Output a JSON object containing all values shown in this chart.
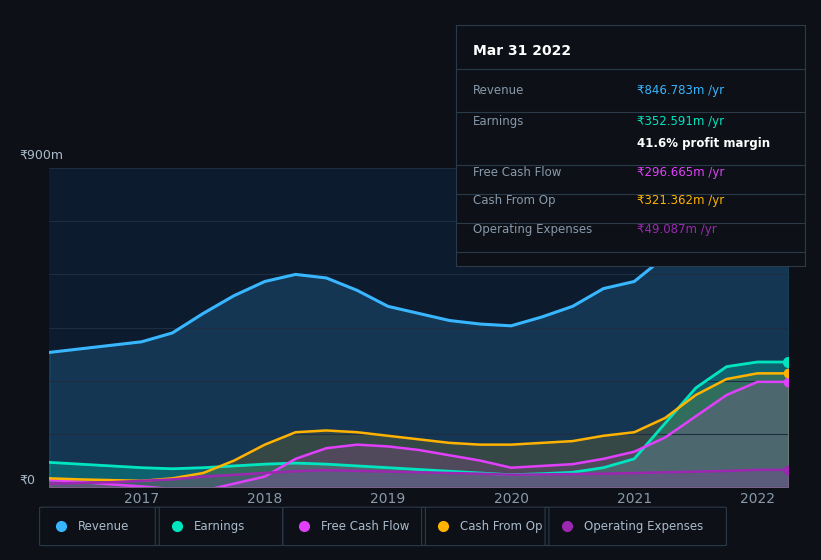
{
  "bg_color": "#0d1117",
  "plot_bg_color": "#0d1b2e",
  "grid_color": "#1e2d40",
  "years": [
    2016.25,
    2016.5,
    2016.75,
    2017.0,
    2017.25,
    2017.5,
    2017.75,
    2018.0,
    2018.25,
    2018.5,
    2018.75,
    2019.0,
    2019.25,
    2019.5,
    2019.75,
    2020.0,
    2020.25,
    2020.5,
    2020.75,
    2021.0,
    2021.25,
    2021.5,
    2021.75,
    2022.0,
    2022.25
  ],
  "revenue": [
    380,
    390,
    400,
    410,
    435,
    490,
    540,
    580,
    600,
    590,
    555,
    510,
    490,
    470,
    460,
    455,
    480,
    510,
    560,
    580,
    650,
    760,
    840,
    847,
    847
  ],
  "earnings": [
    70,
    65,
    60,
    55,
    52,
    55,
    60,
    65,
    68,
    65,
    60,
    55,
    50,
    45,
    40,
    35,
    38,
    42,
    55,
    80,
    180,
    280,
    340,
    353,
    353
  ],
  "free_cash_flow": [
    20,
    15,
    8,
    2,
    -5,
    -10,
    10,
    30,
    80,
    110,
    120,
    115,
    105,
    90,
    75,
    55,
    60,
    65,
    80,
    100,
    140,
    200,
    260,
    297,
    297
  ],
  "cash_from_op": [
    25,
    22,
    20,
    18,
    25,
    40,
    75,
    120,
    155,
    160,
    155,
    145,
    135,
    125,
    120,
    120,
    125,
    130,
    145,
    155,
    195,
    260,
    305,
    321,
    321
  ],
  "operating_expenses": [
    10,
    12,
    14,
    18,
    22,
    30,
    35,
    40,
    45,
    48,
    46,
    44,
    42,
    40,
    38,
    35,
    36,
    37,
    38,
    40,
    42,
    44,
    46,
    49,
    49
  ],
  "revenue_color": "#38b6ff",
  "earnings_color": "#00e5c0",
  "free_cash_flow_color": "#e040fb",
  "cash_from_op_color": "#ffb300",
  "operating_expenses_color": "#9c27b0",
  "ylim": [
    0,
    900
  ],
  "ylabel": "₹900m",
  "y0label": "₹0",
  "legend_labels": [
    "Revenue",
    "Earnings",
    "Free Cash Flow",
    "Cash From Op",
    "Operating Expenses"
  ],
  "tooltip_title": "Mar 31 2022",
  "tick_years": [
    2017,
    2018,
    2019,
    2020,
    2021,
    2022
  ]
}
